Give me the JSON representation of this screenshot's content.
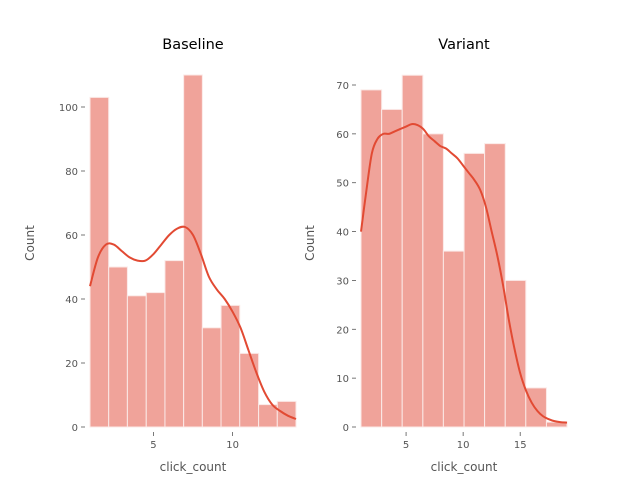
{
  "chart_data": [
    {
      "type": "bar",
      "subtype": "histogram_with_kde",
      "title": "Baseline",
      "xlabel": "click_count",
      "ylabel": "Count",
      "xlim": [
        1.0,
        14.0
      ],
      "ylim": [
        0,
        110
      ],
      "xticks": [
        5,
        10
      ],
      "yticks": [
        0,
        20,
        40,
        60,
        80,
        100
      ],
      "grid": false,
      "bin_edges": [
        1.0,
        2.18,
        3.36,
        4.55,
        5.73,
        6.91,
        8.09,
        9.27,
        10.45,
        11.64,
        12.82,
        14.0
      ],
      "values": [
        103,
        50,
        41,
        42,
        52,
        110,
        31,
        38,
        23,
        7,
        8
      ],
      "kde": {
        "x": [
          1.0,
          1.5,
          2.0,
          2.5,
          3.0,
          3.5,
          4.0,
          4.5,
          5.0,
          5.5,
          6.0,
          6.5,
          7.0,
          7.5,
          8.0,
          8.5,
          9.0,
          9.5,
          10.0,
          10.5,
          11.0,
          11.5,
          12.0,
          12.5,
          13.0,
          13.5,
          14.0
        ],
        "y": [
          44,
          53,
          57,
          57,
          55,
          53,
          52,
          52,
          54,
          57,
          60,
          62,
          62.5,
          60,
          54,
          47,
          43,
          40,
          36,
          31,
          24,
          17,
          11,
          7,
          5,
          3.5,
          2.5
        ]
      },
      "bar_color": "#f0a39a",
      "line_color": "#e24a33"
    },
    {
      "type": "bar",
      "subtype": "histogram_with_kde",
      "title": "Variant",
      "xlabel": "click_count",
      "ylabel": "Count",
      "xlim": [
        1.05,
        19.1
      ],
      "ylim": [
        0,
        72
      ],
      "xticks": [
        5,
        10,
        15
      ],
      "yticks": [
        0,
        10,
        20,
        30,
        40,
        50,
        60,
        70
      ],
      "grid": false,
      "bin_edges": [
        1.05,
        2.86,
        4.66,
        6.47,
        8.27,
        10.08,
        11.88,
        13.69,
        15.49,
        17.3,
        19.1
      ],
      "values": [
        69,
        65,
        72,
        60,
        36,
        56,
        58,
        30,
        8,
        1
      ],
      "kde": {
        "x": [
          1.05,
          1.5,
          2.0,
          2.5,
          3.0,
          3.5,
          4.0,
          4.5,
          5.0,
          5.5,
          6.0,
          6.5,
          7.0,
          7.5,
          8.0,
          8.5,
          9.0,
          9.5,
          10.0,
          10.5,
          11.0,
          11.5,
          12.0,
          12.5,
          13.0,
          13.5,
          14.0,
          14.5,
          15.0,
          15.5,
          16.0,
          16.5,
          17.0,
          17.5,
          18.0,
          18.5,
          19.1
        ],
        "y": [
          40,
          48,
          56,
          59,
          60,
          60,
          60.5,
          61,
          61.5,
          62,
          61.8,
          61,
          59.5,
          58.5,
          57.5,
          57,
          56,
          55,
          53.5,
          52,
          50.5,
          48.5,
          45,
          40,
          35,
          29,
          22,
          16,
          11,
          7.5,
          5,
          3.3,
          2.2,
          1.6,
          1.2,
          1.0,
          0.9
        ]
      },
      "bar_color": "#f0a39a",
      "line_color": "#e24a33"
    }
  ],
  "figure": {
    "panels": [
      {
        "title": "Baseline",
        "xlabel": "click_count",
        "ylabel": "Count"
      },
      {
        "title": "Variant",
        "xlabel": "click_count",
        "ylabel": "Count"
      }
    ]
  }
}
